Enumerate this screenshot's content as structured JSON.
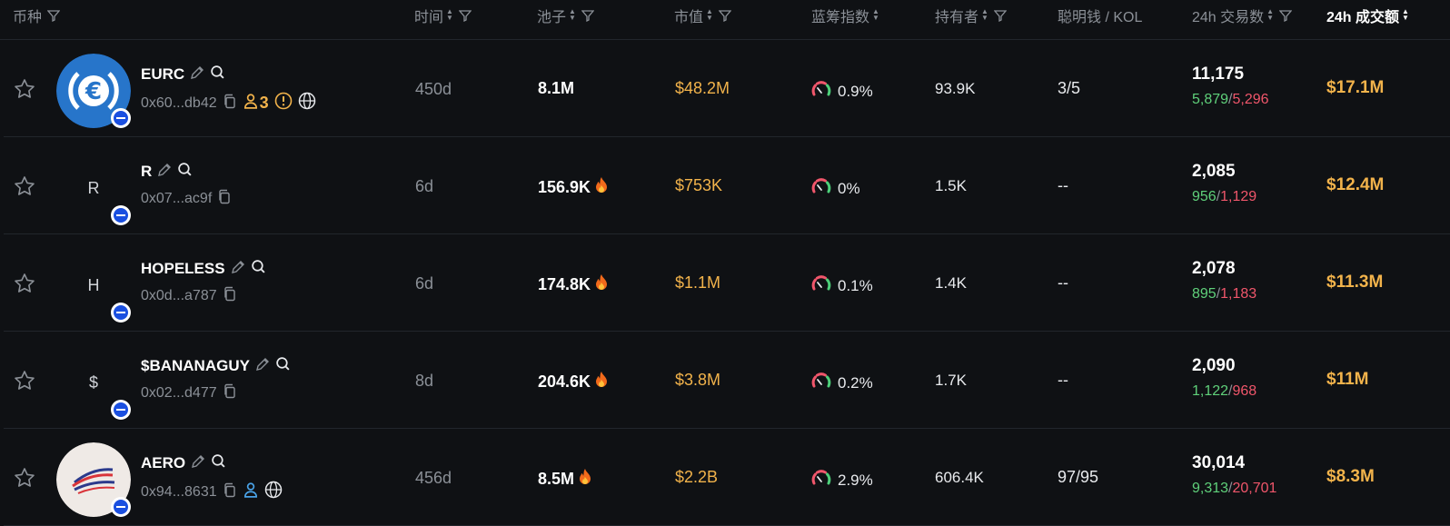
{
  "header": {
    "coin": "币种",
    "age": "时间",
    "pool": "池子",
    "mcap": "市值",
    "bluechip": "蓝筹指数",
    "holders": "持有者",
    "smart": "聪明钱 / KOL",
    "tx24": "24h 交易数",
    "vol24": "24h 成交额"
  },
  "colors": {
    "accent": "#f2b34b",
    "buy": "#5fd07a",
    "sell": "#f0566b",
    "chain": "#1a4fe0"
  },
  "rows": [
    {
      "symbol": "EURC",
      "address": "0x60...db42",
      "holder_badge": "3",
      "logo": "eurc-logo",
      "age": "450d",
      "pool": "8.1M",
      "hot": false,
      "mcap": "$48.2M",
      "bluechip": "0.9%",
      "holders": "93.9K",
      "smart": "3/5",
      "tx": "11,175",
      "buys": "5,879",
      "sells": "5,296",
      "vol": "$17.1M"
    },
    {
      "symbol": "R",
      "address": "0x07...ac9f",
      "letter": "R",
      "age": "6d",
      "pool": "156.9K",
      "hot": true,
      "mcap": "$753K",
      "bluechip": "0%",
      "holders": "1.5K",
      "smart": "--",
      "tx": "2,085",
      "buys": "956",
      "sells": "1,129",
      "vol": "$12.4M"
    },
    {
      "symbol": "HOPELESS",
      "address": "0x0d...a787",
      "letter": "H",
      "age": "6d",
      "pool": "174.8K",
      "hot": true,
      "mcap": "$1.1M",
      "bluechip": "0.1%",
      "holders": "1.4K",
      "smart": "--",
      "tx": "2,078",
      "buys": "895",
      "sells": "1,183",
      "vol": "$11.3M"
    },
    {
      "symbol": "$BANANAGUY",
      "address": "0x02...d477",
      "letter": "$",
      "age": "8d",
      "pool": "204.6K",
      "hot": true,
      "mcap": "$3.8M",
      "bluechip": "0.2%",
      "holders": "1.7K",
      "smart": "--",
      "tx": "2,090",
      "buys": "1,122",
      "sells": "968",
      "vol": "$11M"
    },
    {
      "symbol": "AERO",
      "address": "0x94...8631",
      "logo": "aero-logo",
      "age": "456d",
      "pool": "8.5M",
      "hot": true,
      "mcap": "$2.2B",
      "bluechip": "2.9%",
      "holders": "606.4K",
      "smart": "97/95",
      "tx": "30,014",
      "buys": "9,313",
      "sells": "20,701",
      "vol": "$8.3M"
    }
  ]
}
